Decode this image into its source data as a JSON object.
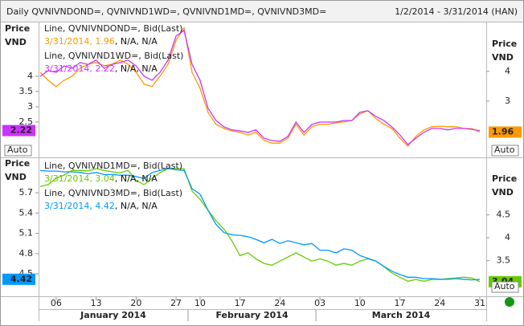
{
  "header": {
    "title": "Daily QVNIVNDOND=, QVNIVND1WD=, QVNIVND1MD=, QVNIVND3MD=",
    "range": "1/2/2014 - 3/31/2014 (HAN)"
  },
  "chart_data": [
    {
      "type": "line",
      "ylabel": [
        "Price",
        "VND"
      ],
      "y2label": [
        "Price",
        "VND"
      ],
      "scale_mode": "Auto",
      "value_date": "3/31/2014,",
      "value_tail": ", N/A, N/A",
      "ylim": [
        1.42,
        5.71
      ],
      "yticks": [
        2.5,
        3,
        3.5,
        4
      ],
      "y2lim": [
        1.19,
        5.59
      ],
      "y2ticks": [
        3,
        4
      ],
      "series": [
        {
          "name": "Line, QVNIVNDOND=, Bid(Last)",
          "color": "#ff9900",
          "axis": "y2",
          "values": [
            3.97,
            3.7,
            3.49,
            3.7,
            3.84,
            4.11,
            4.24,
            4.3,
            4.19,
            4.24,
            4.38,
            4.24,
            3.97,
            3.57,
            3.49,
            3.84,
            4.24,
            5.05,
            5.46,
            3.97,
            3.43,
            2.62,
            2.22,
            2.08,
            2.0,
            1.95,
            1.86,
            1.95,
            1.68,
            1.59,
            1.59,
            1.76,
            2.22,
            1.86,
            2.14,
            2.22,
            2.22,
            2.27,
            2.3,
            2.35,
            2.57,
            2.68,
            2.41,
            2.22,
            2.08,
            1.76,
            1.49,
            1.81,
            2.03,
            2.14,
            2.16,
            2.14,
            2.14,
            2.08,
            2.08,
            1.96
          ]
        },
        {
          "name": "Line, QVNIVND1WD=, Bid(Last)",
          "color": "#cc33ff",
          "axis": "y",
          "values": [
            4,
            4.18,
            4.13,
            4.34,
            4.26,
            4.45,
            4.39,
            4.53,
            4.26,
            4.39,
            4.45,
            4.53,
            4.34,
            4,
            3.87,
            4.13,
            4.53,
            5.32,
            5.5,
            4.39,
            3.87,
            2.95,
            2.55,
            2.34,
            2.24,
            2.21,
            2.16,
            2.24,
            1.97,
            1.89,
            1.87,
            2.03,
            2.5,
            2.16,
            2.42,
            2.5,
            2.5,
            2.5,
            2.55,
            2.55,
            2.82,
            2.87,
            2.68,
            2.55,
            2.34,
            2.08,
            1.76,
            1.97,
            2.16,
            2.29,
            2.29,
            2.24,
            2.29,
            2.29,
            2.26,
            2.22
          ]
        }
      ]
    },
    {
      "type": "line",
      "ylabel": [
        "Price",
        "VND"
      ],
      "y2label": [
        "Price",
        "VND"
      ],
      "scale_mode": "Auto",
      "value_date": "3/31/2014,",
      "value_tail": ", N/A, N/A",
      "categories": [
        null,
        null,
        "06",
        null,
        null,
        null,
        null,
        "13",
        null,
        null,
        null,
        null,
        "20",
        null,
        null,
        null,
        null,
        "27",
        null,
        null,
        "10",
        null,
        null,
        null,
        null,
        "17",
        null,
        null,
        null,
        null,
        "24",
        null,
        null,
        null,
        null,
        "03",
        null,
        null,
        null,
        null,
        "10",
        null,
        null,
        null,
        null,
        "17",
        null,
        null,
        null,
        null,
        "24",
        null,
        null,
        null,
        null,
        "31"
      ],
      "months": [
        "January 2014",
        "February 2014",
        "March 2014"
      ],
      "ylim": [
        4.18,
        6.2
      ],
      "yticks": [
        4.5,
        4.8,
        5.1,
        5.4,
        5.7
      ],
      "y2lim": [
        2.74,
        5.72
      ],
      "y2ticks": [
        3.5,
        4,
        4.5
      ],
      "series": [
        {
          "name": "Line, QVNIVND1MD=, Bid(Last)",
          "color": "#66cc00",
          "axis": "y2",
          "values": [
            5.12,
            5.16,
            5.3,
            5.37,
            5.47,
            5.47,
            5.46,
            5.51,
            5.47,
            5.44,
            5.42,
            5.47,
            5.25,
            5.16,
            5.3,
            5.42,
            5.51,
            5.51,
            5.51,
            5.02,
            4.84,
            4.6,
            4.37,
            4.19,
            3.93,
            3.61,
            3.67,
            3.54,
            3.44,
            3.4,
            3.49,
            3.58,
            3.67,
            3.58,
            3.49,
            3.54,
            3.49,
            3.4,
            3.44,
            3.4,
            3.49,
            3.54,
            3.49,
            3.37,
            3.23,
            3.14,
            3.05,
            3.09,
            3.05,
            3.09,
            3.09,
            3.11,
            3.12,
            3.14,
            3.12,
            3.04
          ]
        },
        {
          "name": "Line, QVNIVND3MD=, Bid(Last)",
          "color": "#0099ff",
          "axis": "y",
          "values": [
            6.03,
            6.02,
            6.02,
            6.01,
            6.01,
            6.0,
            5.98,
            6.0,
            5.97,
            5.97,
            5.96,
            5.96,
            5.94,
            5.91,
            6.0,
            6.03,
            6.06,
            6.04,
            6.03,
            5.76,
            5.68,
            5.44,
            5.23,
            5.11,
            5.08,
            5.07,
            5.05,
            5.01,
            4.96,
            5.01,
            4.95,
            4.99,
            4.96,
            4.93,
            4.95,
            4.85,
            4.85,
            4.81,
            4.87,
            4.85,
            4.77,
            4.73,
            4.69,
            4.61,
            4.54,
            4.49,
            4.45,
            4.45,
            4.43,
            4.43,
            4.42,
            4.42,
            4.43,
            4.42,
            4.41,
            4.42
          ]
        }
      ]
    }
  ]
}
